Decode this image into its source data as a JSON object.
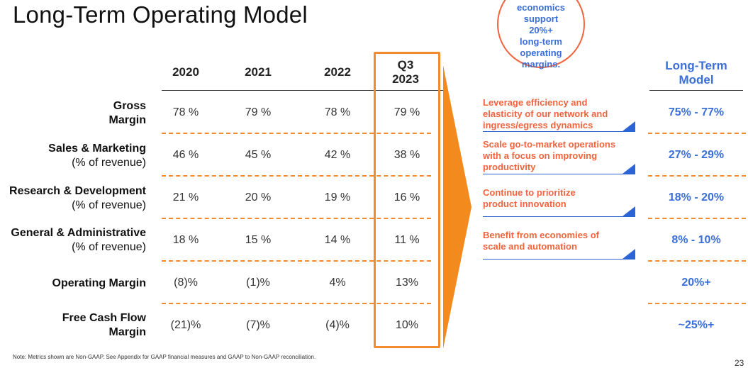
{
  "title": "Long-Term Operating Model",
  "circle_text": [
    "economics",
    "support",
    "20%+",
    "long-term",
    "operating",
    "margins."
  ],
  "columns": [
    "2020",
    "2021",
    "2022"
  ],
  "q3_header": [
    "Q3",
    "2023"
  ],
  "rows": [
    {
      "label_bold": [
        "Gross",
        "Margin"
      ],
      "label_sub": "",
      "values": [
        "78 %",
        "79 %",
        "78 %",
        "79 %"
      ],
      "ltm": "75% - 77%"
    },
    {
      "label_bold": [
        "Sales & Marketing"
      ],
      "label_sub": "(% of revenue)",
      "values": [
        "46 %",
        "45 %",
        "42 %",
        "38 %"
      ],
      "ltm": "27% - 29%"
    },
    {
      "label_bold": [
        "Research & Development"
      ],
      "label_sub": "(% of revenue)",
      "values": [
        "21 %",
        "20 %",
        "19 %",
        "16 %"
      ],
      "ltm": "18% - 20%"
    },
    {
      "label_bold": [
        "General & Administrative"
      ],
      "label_sub": "(% of revenue)",
      "values": [
        "18 %",
        "15 %",
        "14 %",
        "11 %"
      ],
      "ltm": "8% - 10%"
    },
    {
      "label_bold": [
        "Operating Margin"
      ],
      "label_sub": "",
      "values": [
        "(8)%",
        "(1)%",
        "4%",
        "13%"
      ],
      "ltm": "20%+"
    },
    {
      "label_bold": [
        "Free Cash Flow",
        "Margin"
      ],
      "label_sub": "",
      "values": [
        "(21)%",
        "(7)%",
        "(4)%",
        "10%"
      ],
      "ltm": "~25%+"
    }
  ],
  "drivers": [
    [
      "Leverage efficiency and",
      "elasticity of our network and",
      "ingress/egress dynamics"
    ],
    [
      "Scale go-to-market operations",
      "with a focus on improving",
      "productivity"
    ],
    [
      "Continue to prioritize",
      "product innovation"
    ],
    [
      "Benefit from economies of",
      "scale and automation"
    ]
  ],
  "ltm_header": [
    "Long-Term",
    "Model"
  ],
  "note": "Note: Metrics shown are Non-GAAP. See Appendix for GAAP financial measures and GAAP to Non-GAAP reconciliation.",
  "page_number": "23"
}
